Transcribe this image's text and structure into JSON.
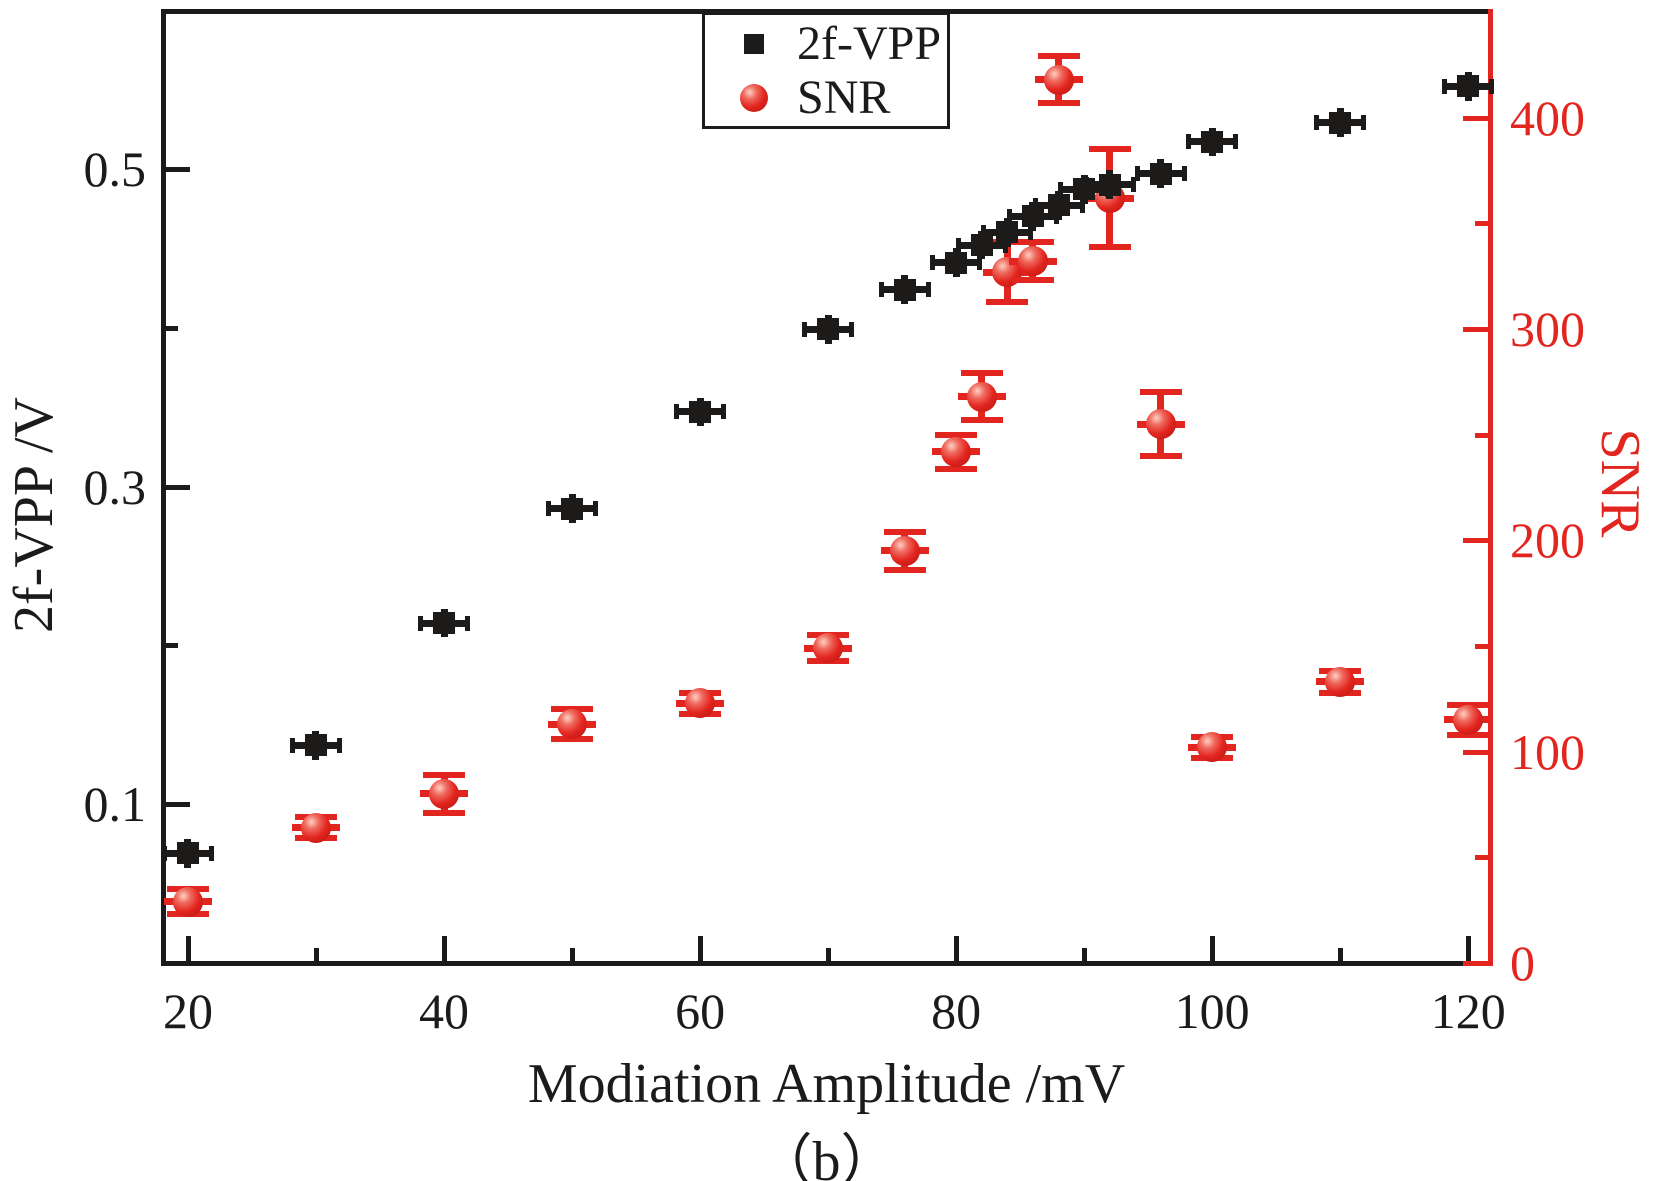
{
  "figure": {
    "background": "#ffffff"
  },
  "colors": {
    "series_2f_vpp": "#1c1b19",
    "series_snr": "#e2251f"
  },
  "chart_data": {
    "type": "scatter",
    "title": "",
    "xlabel": "Modiation Amplitude /mV",
    "subfigure_label": "（b）",
    "grid": false,
    "legend_position": "top-center",
    "x_axis": {
      "label": "Modiation Amplitude /mV",
      "range": [
        18.05,
        121.7
      ],
      "major_ticks": [
        "20",
        "40",
        "60",
        "80",
        "100",
        "120"
      ],
      "minor_ticks": [
        30,
        50,
        70,
        90,
        110
      ],
      "color": "#1c1b19"
    },
    "left_axis": {
      "label": "2f-VPP /V",
      "range": [
        0,
        0.6
      ],
      "major_ticks": [
        "0.1",
        "0.3",
        "0.5"
      ],
      "minor_ticks": [
        0.2,
        0.4
      ],
      "color": "#1c1b19"
    },
    "right_axis": {
      "label": "SNR",
      "range": [
        0,
        451
      ],
      "major_ticks": [
        "0",
        "100",
        "200",
        "300",
        "400"
      ],
      "minor_ticks": [
        50,
        150,
        250,
        350
      ],
      "color": "#e2251f"
    },
    "series": [
      {
        "name": "2f-VPP",
        "axis": "left",
        "marker": "square",
        "color": "#1c1b19",
        "xerr": 1.9,
        "yerr": 0.009,
        "points": [
          {
            "x": 20,
            "y": 0.069
          },
          {
            "x": 30,
            "y": 0.137
          },
          {
            "x": 40,
            "y": 0.214
          },
          {
            "x": 50,
            "y": 0.286
          },
          {
            "x": 60,
            "y": 0.347
          },
          {
            "x": 70,
            "y": 0.399
          },
          {
            "x": 76,
            "y": 0.424
          },
          {
            "x": 80,
            "y": 0.441
          },
          {
            "x": 82,
            "y": 0.452
          },
          {
            "x": 84,
            "y": 0.46
          },
          {
            "x": 86,
            "y": 0.47
          },
          {
            "x": 88,
            "y": 0.477
          },
          {
            "x": 90,
            "y": 0.487
          },
          {
            "x": 92,
            "y": 0.49
          },
          {
            "x": 96,
            "y": 0.497
          },
          {
            "x": 100,
            "y": 0.517
          },
          {
            "x": 110,
            "y": 0.529
          },
          {
            "x": 120,
            "y": 0.552
          }
        ]
      },
      {
        "name": "SNR",
        "axis": "right",
        "marker": "sphere",
        "color": "#e2251f",
        "xerr": 1.9,
        "points": [
          {
            "x": 20,
            "y": 29,
            "yerr": 6
          },
          {
            "x": 30,
            "y": 64,
            "yerr": 5
          },
          {
            "x": 40,
            "y": 80,
            "yerr": 9
          },
          {
            "x": 50,
            "y": 113,
            "yerr": 7
          },
          {
            "x": 60,
            "y": 123,
            "yerr": 5
          },
          {
            "x": 70,
            "y": 149,
            "yerr": 6
          },
          {
            "x": 76,
            "y": 195,
            "yerr": 9
          },
          {
            "x": 80,
            "y": 242,
            "yerr": 8
          },
          {
            "x": 82,
            "y": 268,
            "yerr": 11
          },
          {
            "x": 84,
            "y": 327,
            "yerr": 14
          },
          {
            "x": 86,
            "y": 332,
            "yerr": 9
          },
          {
            "x": 88,
            "y": 418,
            "yerr": 11
          },
          {
            "x": 92,
            "y": 362,
            "yerr": 23
          },
          {
            "x": 96,
            "y": 255,
            "yerr": 15
          },
          {
            "x": 100,
            "y": 102,
            "yerr": 5
          },
          {
            "x": 110,
            "y": 133,
            "yerr": 5
          },
          {
            "x": 120,
            "y": 115,
            "yerr": 7
          }
        ]
      }
    ]
  }
}
